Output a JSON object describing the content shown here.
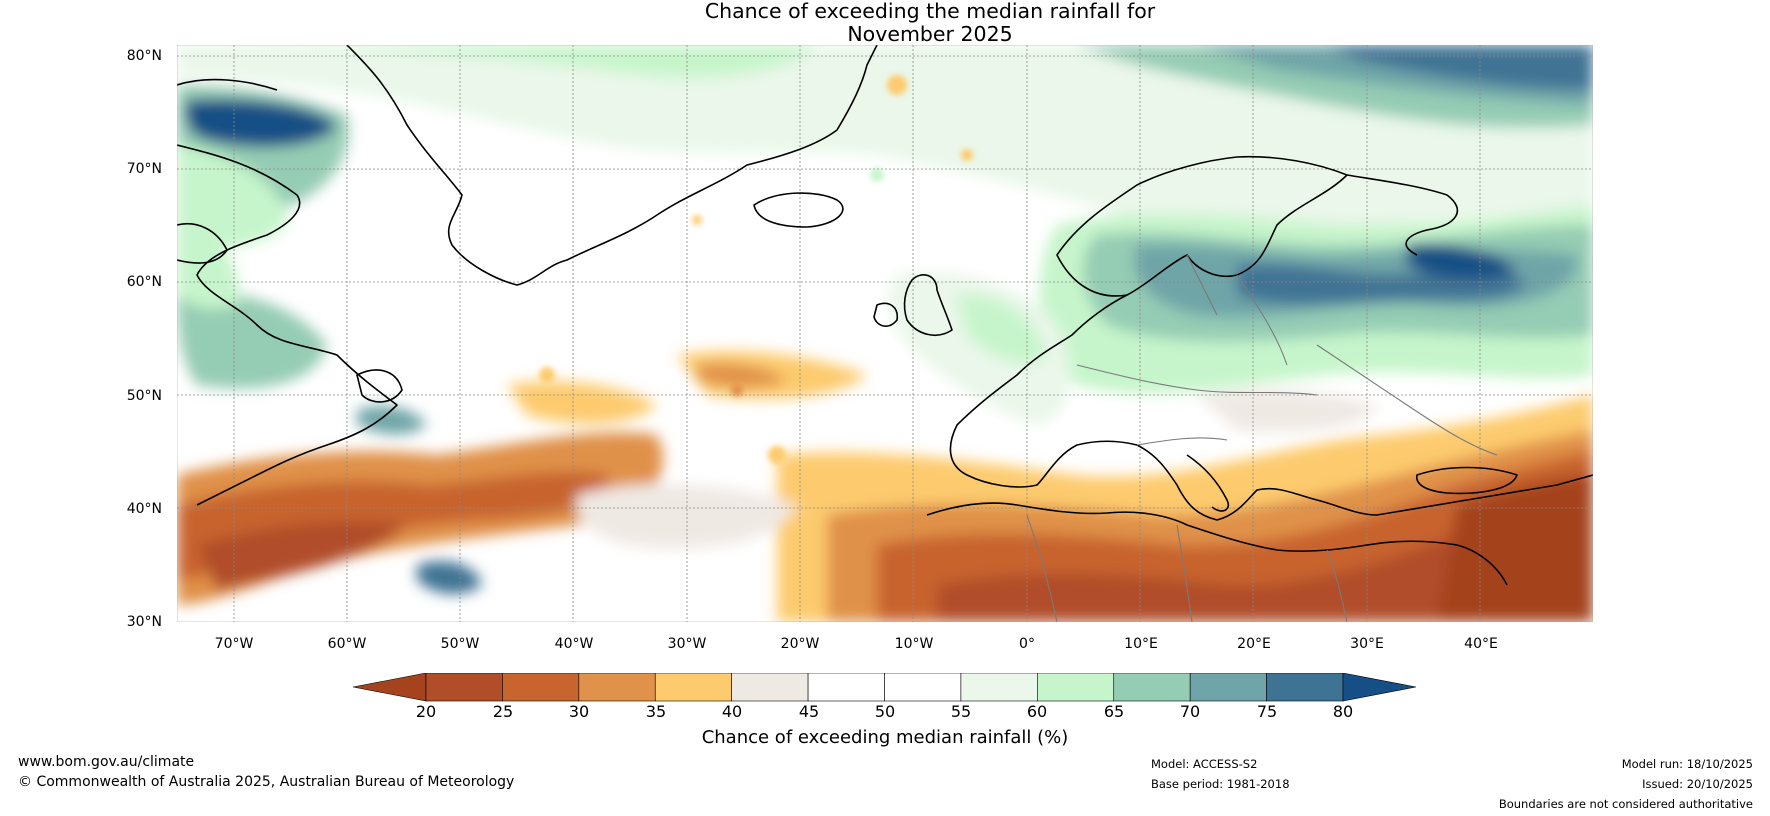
{
  "title": {
    "line1": "Chance of exceeding the median rainfall for",
    "line2": "November 2025"
  },
  "map": {
    "lat_labels": [
      "80°N",
      "70°N",
      "60°N",
      "50°N",
      "40°N",
      "30°N"
    ],
    "lon_labels": [
      "70°W",
      "60°W",
      "50°W",
      "40°W",
      "30°W",
      "20°W",
      "10°W",
      "0°",
      "10°E",
      "20°E",
      "30°E",
      "40°E"
    ],
    "lat_range": [
      30,
      81
    ],
    "lon_range": [
      -75,
      50
    ]
  },
  "colorbar": {
    "ticks": [
      "20",
      "25",
      "30",
      "35",
      "40",
      "45",
      "50",
      "55",
      "60",
      "65",
      "70",
      "75",
      "80"
    ],
    "colors": [
      "#a4431e",
      "#b14e2a",
      "#c8642d",
      "#e0914a",
      "#fdcb6e",
      "#efe9e4",
      "#ffffff",
      "#ffffff",
      "#eaf7ea",
      "#c6f5cb",
      "#95ccb4",
      "#6fa5a8",
      "#3f7394",
      "#164f85"
    ],
    "label": "Chance of exceeding median rainfall (%)"
  },
  "footer": {
    "website": "www.bom.gov.au/climate",
    "copyright": "© Commonwealth of Australia 2025, Australian Bureau of Meteorology",
    "model": "Model: ACCESS-S2",
    "base_period": "Base period: 1981-2018",
    "model_run": "Model run: 18/10/2025",
    "issued": "Issued: 20/10/2025",
    "disclaimer": "Boundaries are not considered authoritative"
  }
}
